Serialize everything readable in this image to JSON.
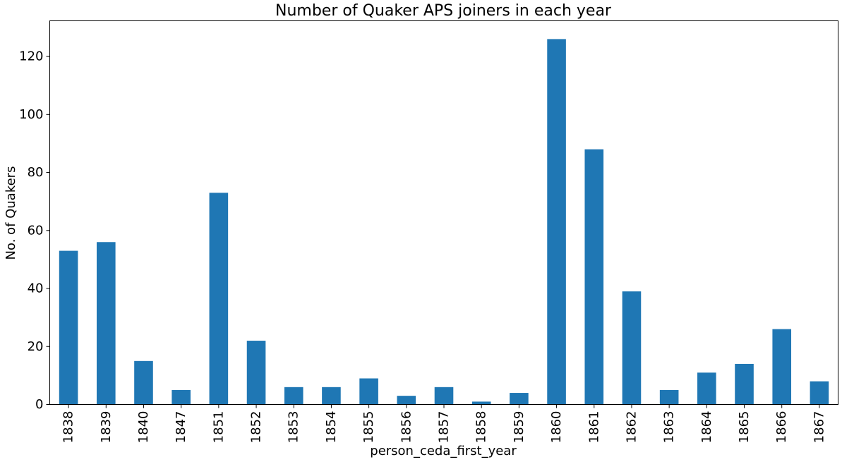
{
  "chart_data": {
    "type": "bar",
    "title": "Number of Quaker APS joiners in each year",
    "xlabel": "person_ceda_first_year",
    "ylabel": "No. of Quakers",
    "categories": [
      "1838",
      "1839",
      "1840",
      "1847",
      "1851",
      "1852",
      "1853",
      "1854",
      "1855",
      "1856",
      "1857",
      "1858",
      "1859",
      "1860",
      "1861",
      "1862",
      "1863",
      "1864",
      "1865",
      "1866",
      "1867"
    ],
    "values": [
      53,
      56,
      15,
      5,
      73,
      22,
      6,
      6,
      9,
      3,
      6,
      1,
      4,
      126,
      88,
      39,
      5,
      11,
      14,
      26,
      8
    ],
    "ylim": [
      0,
      132.3
    ],
    "yticks": [
      0,
      20,
      40,
      60,
      80,
      100,
      120
    ],
    "bar_color": "#1f77b4",
    "grid": false,
    "legend": "none"
  }
}
